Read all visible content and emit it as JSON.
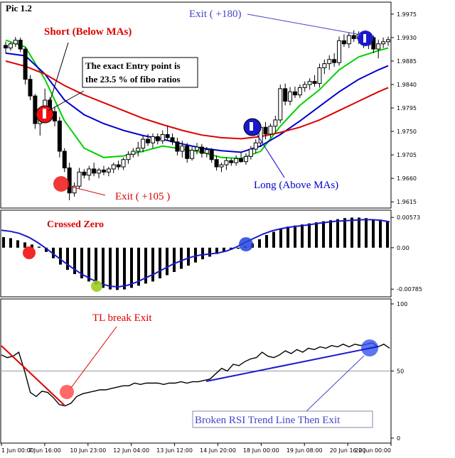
{
  "chart_data": [
    {
      "type": "candlestick",
      "panel": "price",
      "title": "Pic 1.2",
      "y_ticks": [
        "1.9975",
        "1.9930",
        "1.9885",
        "1.9840",
        "1.9795",
        "1.9750",
        "1.9705",
        "1.9660",
        "1.9615"
      ],
      "ylim": [
        1.9603,
        1.9998
      ],
      "candles": [
        {
          "o": 1.9915,
          "h": 1.9922,
          "l": 1.99,
          "c": 1.991
        },
        {
          "o": 1.991,
          "h": 1.9921,
          "l": 1.9905,
          "c": 1.9918
        },
        {
          "o": 1.9918,
          "h": 1.9931,
          "l": 1.9912,
          "c": 1.9925
        },
        {
          "o": 1.9925,
          "h": 1.993,
          "l": 1.9902,
          "c": 1.9908
        },
        {
          "o": 1.9908,
          "h": 1.9912,
          "l": 1.984,
          "c": 1.985
        },
        {
          "o": 1.985,
          "h": 1.9858,
          "l": 1.981,
          "c": 1.9818
        },
        {
          "o": 1.9818,
          "h": 1.9822,
          "l": 1.9755,
          "c": 1.9765
        },
        {
          "o": 1.9765,
          "h": 1.9785,
          "l": 1.9742,
          "c": 1.978
        },
        {
          "o": 1.978,
          "h": 1.9832,
          "l": 1.977,
          "c": 1.981
        },
        {
          "o": 1.981,
          "h": 1.9816,
          "l": 1.9775,
          "c": 1.9788
        },
        {
          "o": 1.9788,
          "h": 1.9798,
          "l": 1.976,
          "c": 1.977
        },
        {
          "o": 1.977,
          "h": 1.9778,
          "l": 1.97,
          "c": 1.9712
        },
        {
          "o": 1.9712,
          "h": 1.9718,
          "l": 1.9672,
          "c": 1.968
        },
        {
          "o": 1.968,
          "h": 1.969,
          "l": 1.9618,
          "c": 1.9632
        },
        {
          "o": 1.9632,
          "h": 1.9652,
          "l": 1.9625,
          "c": 1.9645
        },
        {
          "o": 1.9645,
          "h": 1.968,
          "l": 1.964,
          "c": 1.9672
        },
        {
          "o": 1.9672,
          "h": 1.9678,
          "l": 1.966,
          "c": 1.9666
        },
        {
          "o": 1.9666,
          "h": 1.9684,
          "l": 1.9656,
          "c": 1.9678
        },
        {
          "o": 1.9678,
          "h": 1.969,
          "l": 1.9664,
          "c": 1.967
        },
        {
          "o": 1.967,
          "h": 1.968,
          "l": 1.966,
          "c": 1.9676
        },
        {
          "o": 1.9676,
          "h": 1.9684,
          "l": 1.9666,
          "c": 1.9672
        },
        {
          "o": 1.9672,
          "h": 1.9682,
          "l": 1.9664,
          "c": 1.9678
        },
        {
          "o": 1.9678,
          "h": 1.969,
          "l": 1.967,
          "c": 1.9686
        },
        {
          "o": 1.9686,
          "h": 1.9694,
          "l": 1.9676,
          "c": 1.9682
        },
        {
          "o": 1.9682,
          "h": 1.97,
          "l": 1.9676,
          "c": 1.9696
        },
        {
          "o": 1.9696,
          "h": 1.9712,
          "l": 1.9688,
          "c": 1.9706
        },
        {
          "o": 1.9706,
          "h": 1.9718,
          "l": 1.97,
          "c": 1.9712
        },
        {
          "o": 1.9712,
          "h": 1.973,
          "l": 1.9702,
          "c": 1.9718
        },
        {
          "o": 1.9718,
          "h": 1.9742,
          "l": 1.971,
          "c": 1.9735
        },
        {
          "o": 1.9735,
          "h": 1.9745,
          "l": 1.9722,
          "c": 1.9728
        },
        {
          "o": 1.9728,
          "h": 1.9746,
          "l": 1.9718,
          "c": 1.974
        },
        {
          "o": 1.974,
          "h": 1.9746,
          "l": 1.9725,
          "c": 1.9732
        },
        {
          "o": 1.9732,
          "h": 1.9752,
          "l": 1.9726,
          "c": 1.9744
        },
        {
          "o": 1.9744,
          "h": 1.976,
          "l": 1.9734,
          "c": 1.9738
        },
        {
          "o": 1.9738,
          "h": 1.9746,
          "l": 1.9724,
          "c": 1.973
        },
        {
          "o": 1.973,
          "h": 1.9738,
          "l": 1.9704,
          "c": 1.9712
        },
        {
          "o": 1.9712,
          "h": 1.9732,
          "l": 1.97,
          "c": 1.9722
        },
        {
          "o": 1.9722,
          "h": 1.9728,
          "l": 1.969,
          "c": 1.9698
        },
        {
          "o": 1.9698,
          "h": 1.972,
          "l": 1.9694,
          "c": 1.9714
        },
        {
          "o": 1.9714,
          "h": 1.9728,
          "l": 1.9706,
          "c": 1.972
        },
        {
          "o": 1.972,
          "h": 1.9726,
          "l": 1.97,
          "c": 1.9708
        },
        {
          "o": 1.9708,
          "h": 1.972,
          "l": 1.97,
          "c": 1.9715
        },
        {
          "o": 1.9715,
          "h": 1.9718,
          "l": 1.969,
          "c": 1.9696
        },
        {
          "o": 1.9696,
          "h": 1.9704,
          "l": 1.9675,
          "c": 1.9682
        },
        {
          "o": 1.9682,
          "h": 1.969,
          "l": 1.9672,
          "c": 1.9686
        },
        {
          "o": 1.9686,
          "h": 1.97,
          "l": 1.9676,
          "c": 1.9694
        },
        {
          "o": 1.9694,
          "h": 1.9698,
          "l": 1.9684,
          "c": 1.969
        },
        {
          "o": 1.969,
          "h": 1.9704,
          "l": 1.9684,
          "c": 1.9698
        },
        {
          "o": 1.9698,
          "h": 1.971,
          "l": 1.969,
          "c": 1.9692
        },
        {
          "o": 1.9692,
          "h": 1.9708,
          "l": 1.9686,
          "c": 1.9702
        },
        {
          "o": 1.9702,
          "h": 1.9722,
          "l": 1.9696,
          "c": 1.9716
        },
        {
          "o": 1.9716,
          "h": 1.9735,
          "l": 1.9708,
          "c": 1.9728
        },
        {
          "o": 1.9728,
          "h": 1.9764,
          "l": 1.972,
          "c": 1.9758
        },
        {
          "o": 1.9758,
          "h": 1.9768,
          "l": 1.9735,
          "c": 1.9745
        },
        {
          "o": 1.9745,
          "h": 1.9765,
          "l": 1.9738,
          "c": 1.976
        },
        {
          "o": 1.976,
          "h": 1.978,
          "l": 1.9748,
          "c": 1.9772
        },
        {
          "o": 1.9772,
          "h": 1.984,
          "l": 1.9766,
          "c": 1.9832
        },
        {
          "o": 1.9832,
          "h": 1.9842,
          "l": 1.98,
          "c": 1.9808
        },
        {
          "o": 1.9808,
          "h": 1.9835,
          "l": 1.98,
          "c": 1.9826
        },
        {
          "o": 1.9826,
          "h": 1.9836,
          "l": 1.9814,
          "c": 1.982
        },
        {
          "o": 1.982,
          "h": 1.984,
          "l": 1.9814,
          "c": 1.9834
        },
        {
          "o": 1.9834,
          "h": 1.9846,
          "l": 1.9826,
          "c": 1.984
        },
        {
          "o": 1.984,
          "h": 1.9852,
          "l": 1.983,
          "c": 1.9846
        },
        {
          "o": 1.9846,
          "h": 1.9858,
          "l": 1.9836,
          "c": 1.9842
        },
        {
          "o": 1.9842,
          "h": 1.988,
          "l": 1.9834,
          "c": 1.9872
        },
        {
          "o": 1.9872,
          "h": 1.9888,
          "l": 1.986,
          "c": 1.988
        },
        {
          "o": 1.988,
          "h": 1.9896,
          "l": 1.9868,
          "c": 1.9888
        },
        {
          "o": 1.9888,
          "h": 1.99,
          "l": 1.9874,
          "c": 1.9882
        },
        {
          "o": 1.9882,
          "h": 1.9932,
          "l": 1.9876,
          "c": 1.9924
        },
        {
          "o": 1.9924,
          "h": 1.9936,
          "l": 1.9912,
          "c": 1.9918
        },
        {
          "o": 1.9918,
          "h": 1.994,
          "l": 1.991,
          "c": 1.9934
        },
        {
          "o": 1.9934,
          "h": 1.9944,
          "l": 1.9922,
          "c": 1.9928
        },
        {
          "o": 1.9928,
          "h": 1.9942,
          "l": 1.9918,
          "c": 1.9936
        },
        {
          "o": 1.9936,
          "h": 1.994,
          "l": 1.991,
          "c": 1.9916
        },
        {
          "o": 1.9916,
          "h": 1.9936,
          "l": 1.9908,
          "c": 1.993
        },
        {
          "o": 1.993,
          "h": 1.9934,
          "l": 1.99,
          "c": 1.9908
        },
        {
          "o": 1.9908,
          "h": 1.9926,
          "l": 1.989,
          "c": 1.9918
        },
        {
          "o": 1.9918,
          "h": 1.993,
          "l": 1.991,
          "c": 1.9922
        },
        {
          "o": 1.9922,
          "h": 1.9932,
          "l": 1.9914,
          "c": 1.9926
        }
      ],
      "moving_averages": [
        {
          "color": "#00d000",
          "points": [
            [
              0,
              1.9925
            ],
            [
              4,
              1.9912
            ],
            [
              8,
              1.985
            ],
            [
              12,
              1.977
            ],
            [
              16,
              1.9718
            ],
            [
              20,
              1.97
            ],
            [
              24,
              1.9703
            ],
            [
              28,
              1.9712
            ],
            [
              32,
              1.9722
            ],
            [
              36,
              1.9716
            ],
            [
              40,
              1.971
            ],
            [
              44,
              1.97
            ],
            [
              48,
              1.9698
            ],
            [
              52,
              1.9712
            ],
            [
              56,
              1.976
            ],
            [
              60,
              1.98
            ],
            [
              64,
              1.983
            ],
            [
              68,
              1.9868
            ],
            [
              72,
              1.9893
            ],
            [
              76,
              1.9905
            ],
            [
              78,
              1.991
            ]
          ]
        },
        {
          "color": "#0000cc",
          "points": [
            [
              0,
              1.99
            ],
            [
              4,
              1.9895
            ],
            [
              8,
              1.986
            ],
            [
              12,
              1.981
            ],
            [
              16,
              1.9782
            ],
            [
              20,
              1.9765
            ],
            [
              24,
              1.9752
            ],
            [
              28,
              1.9742
            ],
            [
              32,
              1.9735
            ],
            [
              36,
              1.9726
            ],
            [
              40,
              1.9718
            ],
            [
              44,
              1.9713
            ],
            [
              48,
              1.971
            ],
            [
              52,
              1.9722
            ],
            [
              56,
              1.9744
            ],
            [
              60,
              1.977
            ],
            [
              64,
              1.9798
            ],
            [
              68,
              1.9826
            ],
            [
              72,
              1.985
            ],
            [
              76,
              1.9868
            ],
            [
              78,
              1.9876
            ]
          ]
        },
        {
          "color": "#dd0000",
          "points": [
            [
              0,
              1.9885
            ],
            [
              4,
              1.9875
            ],
            [
              8,
              1.986
            ],
            [
              12,
              1.9838
            ],
            [
              16,
              1.982
            ],
            [
              20,
              1.9805
            ],
            [
              24,
              1.979
            ],
            [
              28,
              1.9775
            ],
            [
              32,
              1.9763
            ],
            [
              36,
              1.9752
            ],
            [
              40,
              1.9743
            ],
            [
              44,
              1.9738
            ],
            [
              48,
              1.9736
            ],
            [
              52,
              1.974
            ],
            [
              56,
              1.9748
            ],
            [
              60,
              1.9758
            ],
            [
              64,
              1.9772
            ],
            [
              68,
              1.979
            ],
            [
              72,
              1.9808
            ],
            [
              76,
              1.9826
            ],
            [
              78,
              1.9834
            ]
          ]
        }
      ],
      "annotations": [
        {
          "text": "Short (Below MAs)",
          "color": "#dd0000"
        },
        {
          "text": "The exact Entry point is the 23.5 % of fibo ratios",
          "color": "#000000"
        },
        {
          "text": "Exit ( +105 )",
          "color": "#dd0000"
        },
        {
          "text": "Exit ( +180)",
          "color": "#4444cc"
        },
        {
          "text": "Long (Above MAs)",
          "color": "#0000cc"
        }
      ]
    },
    {
      "type": "bar",
      "panel": "oscillator",
      "y_ticks": [
        "0.00573",
        "0.00",
        "-0.00785"
      ],
      "ylim": [
        -0.0093,
        0.0071
      ],
      "values": [
        0.002,
        0.0018,
        0.0014,
        0.001,
        0.0006,
        0.0002,
        -0.0008,
        -0.002,
        -0.0032,
        -0.0042,
        -0.005,
        -0.0058,
        -0.0064,
        -0.007,
        -0.0076,
        -0.0079,
        -0.008,
        -0.0079,
        -0.0076,
        -0.0072,
        -0.0068,
        -0.0064,
        -0.0058,
        -0.0052,
        -0.0046,
        -0.004,
        -0.0034,
        -0.0028,
        -0.0022,
        -0.0017,
        -0.0012,
        -0.0008,
        -0.0004,
        -0.0002,
        0.0002,
        0.0008,
        0.0016,
        0.0024,
        0.003,
        0.0036,
        0.004,
        0.0042,
        0.0044,
        0.0046,
        0.0048,
        0.005,
        0.0052,
        0.0054,
        0.0056,
        0.0057,
        0.0057,
        0.0056,
        0.0054,
        0.0052,
        0.005
      ],
      "signal": [
        0.0033,
        0.0031,
        0.0027,
        0.002,
        0.001,
        -0.0002,
        -0.0015,
        -0.0028,
        -0.004,
        -0.0051,
        -0.006,
        -0.0068,
        -0.0073,
        -0.0074,
        -0.0071,
        -0.0065,
        -0.0057,
        -0.0049,
        -0.004,
        -0.0031,
        -0.0024,
        -0.0018,
        -0.0014,
        -0.0012,
        -0.001,
        -0.0006,
        0.0001,
        0.001,
        0.0018,
        0.0026,
        0.0032,
        0.0036,
        0.0039,
        0.0041,
        0.0043,
        0.0046,
        0.0048,
        0.005,
        0.0051,
        0.0052,
        0.0053,
        0.0053,
        0.0052,
        0.0049
      ],
      "annotations": [
        {
          "text": "Crossed Zero",
          "color": "#dd0000"
        }
      ]
    },
    {
      "type": "line",
      "panel": "rsi",
      "y_ticks": [
        "100",
        "50",
        "0"
      ],
      "ylim": [
        0,
        100
      ],
      "values": [
        62,
        60,
        61,
        64,
        50,
        34,
        31,
        35,
        34,
        30,
        25,
        24,
        26,
        31,
        33,
        34,
        35,
        36,
        36,
        37,
        38,
        39,
        39,
        41,
        40,
        41,
        41,
        41,
        40,
        41,
        41,
        42,
        41,
        42,
        42,
        43,
        44,
        48,
        52,
        50,
        55,
        54,
        57,
        59,
        60,
        64,
        61,
        60,
        62,
        65,
        63,
        66,
        64,
        67,
        66,
        68,
        67,
        69,
        68,
        70,
        68,
        70,
        69,
        70,
        71,
        68,
        70,
        67
      ],
      "annotations": [
        {
          "text": "TL break Exit",
          "color": "#dd0000"
        },
        {
          "text": "Broken RSI Trend Line Then Exit",
          "color": "#4444cc"
        }
      ]
    }
  ],
  "x_ticks": [
    "1 Jun 00:00",
    "7 Jun 16:00",
    "10 Jun 23:00",
    "12 Jun 04:00",
    "13 Jun 12:00",
    "14 Jun 20:00",
    "18 Jun 00:00",
    "19 Jun 08:00",
    "20 Jun 16:00",
    "22 Jun 00:00"
  ]
}
